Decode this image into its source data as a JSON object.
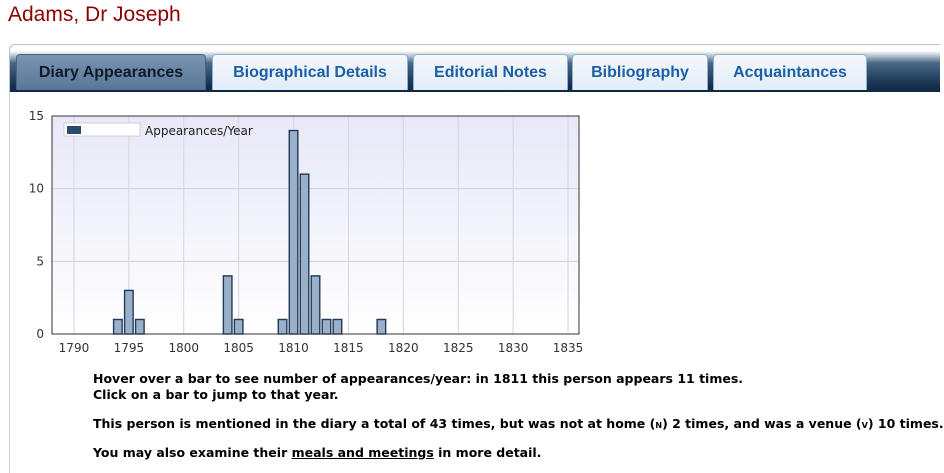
{
  "page_title": "Adams, Dr Joseph",
  "tabs": [
    {
      "label": "Diary Appearances",
      "active": true
    },
    {
      "label": "Biographical Details",
      "active": false
    },
    {
      "label": "Editorial Notes",
      "active": false
    },
    {
      "label": "Bibliography",
      "active": false
    },
    {
      "label": "Acquaintances",
      "active": false
    }
  ],
  "colors": {
    "title": "#8b0000",
    "bar_fill": "#9ab0c9",
    "bar_stroke": "#1f3a5c",
    "tab_text": "#1d5fa6"
  },
  "chart_data": {
    "type": "bar",
    "title": "",
    "xlabel": "",
    "ylabel": "",
    "legend": {
      "label": "Appearances/Year",
      "position": "top-left"
    },
    "xlim": [
      1788,
      1836
    ],
    "ylim": [
      0,
      15
    ],
    "x_ticks": [
      1790,
      1795,
      1800,
      1805,
      1810,
      1815,
      1820,
      1825,
      1830,
      1835
    ],
    "y_ticks": [
      0,
      5,
      10,
      15
    ],
    "grid": true,
    "x": [
      1794,
      1795,
      1796,
      1804,
      1805,
      1809,
      1810,
      1811,
      1812,
      1813,
      1814,
      1818
    ],
    "values": [
      1,
      3,
      1,
      4,
      1,
      1,
      14,
      11,
      4,
      1,
      1,
      1
    ]
  },
  "info": {
    "hover_text": "Hover over a bar to see number of appearances/year: in 1811 this person appears 11 times.",
    "click_text": "Click on a bar to jump to that year.",
    "mention_start": "This person is mentioned in the diary a total of 43 times, but was not at home (",
    "not_home_symbol": "N",
    "mention_mid": ") 2 times, and was a venue (",
    "venue_symbol": "V",
    "mention_end": ") 10 times.",
    "examine_start": "You may also examine their ",
    "examine_link": "meals and meetings",
    "examine_end": " in more detail."
  }
}
